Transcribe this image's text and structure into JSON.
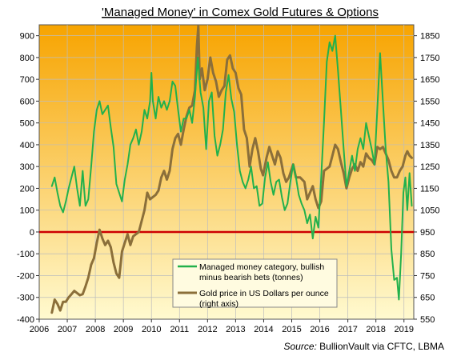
{
  "chart_data": {
    "type": "line",
    "title": "'Managed Money' in Comex Gold Futures & Options",
    "source_prefix": "Source:",
    "source_text": " BullionVault via CFTC, LBMA",
    "x_ticks": [
      "2006",
      "2007",
      "2008",
      "2009",
      "2010",
      "2011",
      "2012",
      "2013",
      "2014",
      "2015",
      "2016",
      "2017",
      "2018",
      "2019"
    ],
    "xlim": [
      2006,
      2019.35
    ],
    "left_axis": {
      "ylim": [
        -400,
        950
      ],
      "ticks": [
        -400,
        -300,
        -200,
        -100,
        0,
        100,
        200,
        300,
        400,
        500,
        600,
        700,
        800,
        900
      ]
    },
    "right_axis": {
      "ylim": [
        550,
        1900
      ],
      "ticks": [
        550,
        650,
        750,
        850,
        950,
        1050,
        1150,
        1250,
        1350,
        1450,
        1550,
        1650,
        1750,
        1850
      ]
    },
    "zero_line": {
      "value": 0,
      "color": "#cc0000"
    },
    "background_gradient": {
      "top": "#f7a400",
      "bottom": "#fffad0"
    },
    "grid": true,
    "legend_placement": "lower-center",
    "series": [
      {
        "name": "Managed money category, bullish minus bearish bets (tonnes)",
        "legend_lines": [
          "Managed money category, bullish",
          "minus bearish bets (tonnes)"
        ],
        "axis": "left",
        "color": "#22b14c",
        "points": [
          [
            2006.45,
            210
          ],
          [
            2006.55,
            250
          ],
          [
            2006.65,
            180
          ],
          [
            2006.75,
            120
          ],
          [
            2006.85,
            90
          ],
          [
            2006.95,
            140
          ],
          [
            2007.05,
            200
          ],
          [
            2007.15,
            250
          ],
          [
            2007.25,
            300
          ],
          [
            2007.35,
            200
          ],
          [
            2007.45,
            120
          ],
          [
            2007.55,
            280
          ],
          [
            2007.65,
            120
          ],
          [
            2007.75,
            150
          ],
          [
            2007.85,
            300
          ],
          [
            2007.95,
            460
          ],
          [
            2008.05,
            560
          ],
          [
            2008.15,
            600
          ],
          [
            2008.25,
            540
          ],
          [
            2008.35,
            560
          ],
          [
            2008.45,
            580
          ],
          [
            2008.55,
            480
          ],
          [
            2008.65,
            390
          ],
          [
            2008.75,
            220
          ],
          [
            2008.85,
            180
          ],
          [
            2008.95,
            140
          ],
          [
            2009.05,
            240
          ],
          [
            2009.15,
            310
          ],
          [
            2009.25,
            400
          ],
          [
            2009.35,
            430
          ],
          [
            2009.45,
            470
          ],
          [
            2009.55,
            400
          ],
          [
            2009.65,
            460
          ],
          [
            2009.75,
            560
          ],
          [
            2009.85,
            520
          ],
          [
            2009.95,
            600
          ],
          [
            2010.0,
            730
          ],
          [
            2010.05,
            600
          ],
          [
            2010.15,
            520
          ],
          [
            2010.25,
            620
          ],
          [
            2010.35,
            570
          ],
          [
            2010.45,
            600
          ],
          [
            2010.55,
            560
          ],
          [
            2010.65,
            600
          ],
          [
            2010.75,
            690
          ],
          [
            2010.85,
            670
          ],
          [
            2010.95,
            560
          ],
          [
            2011.05,
            460
          ],
          [
            2011.15,
            520
          ],
          [
            2011.25,
            520
          ],
          [
            2011.35,
            560
          ],
          [
            2011.45,
            500
          ],
          [
            2011.55,
            620
          ],
          [
            2011.65,
            800
          ],
          [
            2011.75,
            640
          ],
          [
            2011.85,
            570
          ],
          [
            2011.95,
            380
          ],
          [
            2012.05,
            600
          ],
          [
            2012.15,
            640
          ],
          [
            2012.25,
            440
          ],
          [
            2012.35,
            350
          ],
          [
            2012.45,
            400
          ],
          [
            2012.55,
            470
          ],
          [
            2012.65,
            640
          ],
          [
            2012.75,
            720
          ],
          [
            2012.85,
            610
          ],
          [
            2012.95,
            550
          ],
          [
            2013.05,
            400
          ],
          [
            2013.15,
            280
          ],
          [
            2013.25,
            230
          ],
          [
            2013.35,
            200
          ],
          [
            2013.45,
            240
          ],
          [
            2013.55,
            300
          ],
          [
            2013.65,
            200
          ],
          [
            2013.75,
            210
          ],
          [
            2013.85,
            120
          ],
          [
            2013.95,
            130
          ],
          [
            2014.05,
            250
          ],
          [
            2014.15,
            320
          ],
          [
            2014.25,
            230
          ],
          [
            2014.35,
            170
          ],
          [
            2014.45,
            230
          ],
          [
            2014.55,
            240
          ],
          [
            2014.65,
            160
          ],
          [
            2014.75,
            100
          ],
          [
            2014.85,
            130
          ],
          [
            2014.95,
            230
          ],
          [
            2015.05,
            310
          ],
          [
            2015.15,
            250
          ],
          [
            2015.25,
            170
          ],
          [
            2015.35,
            130
          ],
          [
            2015.45,
            100
          ],
          [
            2015.55,
            40
          ],
          [
            2015.65,
            80
          ],
          [
            2015.75,
            -30
          ],
          [
            2015.85,
            70
          ],
          [
            2015.95,
            20
          ],
          [
            2016.05,
            250
          ],
          [
            2016.15,
            500
          ],
          [
            2016.25,
            780
          ],
          [
            2016.35,
            870
          ],
          [
            2016.45,
            830
          ],
          [
            2016.55,
            900
          ],
          [
            2016.65,
            740
          ],
          [
            2016.75,
            560
          ],
          [
            2016.85,
            380
          ],
          [
            2016.95,
            210
          ],
          [
            2017.05,
            280
          ],
          [
            2017.15,
            350
          ],
          [
            2017.25,
            280
          ],
          [
            2017.35,
            380
          ],
          [
            2017.45,
            430
          ],
          [
            2017.55,
            380
          ],
          [
            2017.65,
            500
          ],
          [
            2017.75,
            440
          ],
          [
            2017.85,
            380
          ],
          [
            2017.95,
            310
          ],
          [
            2018.05,
            560
          ],
          [
            2018.15,
            820
          ],
          [
            2018.25,
            600
          ],
          [
            2018.35,
            380
          ],
          [
            2018.45,
            230
          ],
          [
            2018.55,
            -80
          ],
          [
            2018.65,
            -220
          ],
          [
            2018.75,
            -210
          ],
          [
            2018.82,
            -310
          ],
          [
            2018.9,
            -100
          ],
          [
            2018.98,
            180
          ],
          [
            2019.05,
            250
          ],
          [
            2019.12,
            100
          ],
          [
            2019.2,
            270
          ],
          [
            2019.28,
            120
          ]
        ]
      },
      {
        "name": "Gold price in US Dollars per ounce (right axis)",
        "legend_lines": [
          "Gold price in US Dollars per ounce",
          "(right axis)"
        ],
        "axis": "right",
        "color": "#8b6f3a",
        "points": [
          [
            2006.45,
            580
          ],
          [
            2006.55,
            640
          ],
          [
            2006.65,
            620
          ],
          [
            2006.75,
            590
          ],
          [
            2006.85,
            630
          ],
          [
            2006.95,
            630
          ],
          [
            2007.05,
            650
          ],
          [
            2007.15,
            665
          ],
          [
            2007.25,
            680
          ],
          [
            2007.35,
            670
          ],
          [
            2007.45,
            660
          ],
          [
            2007.55,
            665
          ],
          [
            2007.65,
            700
          ],
          [
            2007.75,
            740
          ],
          [
            2007.85,
            800
          ],
          [
            2007.95,
            830
          ],
          [
            2008.05,
            900
          ],
          [
            2008.15,
            960
          ],
          [
            2008.25,
            920
          ],
          [
            2008.35,
            890
          ],
          [
            2008.45,
            910
          ],
          [
            2008.55,
            880
          ],
          [
            2008.65,
            810
          ],
          [
            2008.75,
            760
          ],
          [
            2008.85,
            740
          ],
          [
            2008.95,
            860
          ],
          [
            2009.05,
            900
          ],
          [
            2009.15,
            940
          ],
          [
            2009.25,
            890
          ],
          [
            2009.35,
            930
          ],
          [
            2009.45,
            940
          ],
          [
            2009.55,
            950
          ],
          [
            2009.65,
            1000
          ],
          [
            2009.75,
            1050
          ],
          [
            2009.85,
            1130
          ],
          [
            2009.95,
            1100
          ],
          [
            2010.05,
            1110
          ],
          [
            2010.15,
            1120
          ],
          [
            2010.25,
            1140
          ],
          [
            2010.35,
            1200
          ],
          [
            2010.45,
            1230
          ],
          [
            2010.55,
            1190
          ],
          [
            2010.65,
            1230
          ],
          [
            2010.75,
            1330
          ],
          [
            2010.85,
            1380
          ],
          [
            2010.95,
            1400
          ],
          [
            2011.05,
            1350
          ],
          [
            2011.15,
            1420
          ],
          [
            2011.25,
            1480
          ],
          [
            2011.35,
            1520
          ],
          [
            2011.45,
            1530
          ],
          [
            2011.55,
            1600
          ],
          [
            2011.62,
            1800
          ],
          [
            2011.67,
            1895
          ],
          [
            2011.72,
            1650
          ],
          [
            2011.8,
            1700
          ],
          [
            2011.9,
            1600
          ],
          [
            2012.0,
            1650
          ],
          [
            2012.1,
            1750
          ],
          [
            2012.2,
            1680
          ],
          [
            2012.3,
            1640
          ],
          [
            2012.4,
            1570
          ],
          [
            2012.5,
            1600
          ],
          [
            2012.6,
            1620
          ],
          [
            2012.7,
            1740
          ],
          [
            2012.8,
            1760
          ],
          [
            2012.9,
            1700
          ],
          [
            2013.0,
            1680
          ],
          [
            2013.1,
            1610
          ],
          [
            2013.2,
            1580
          ],
          [
            2013.3,
            1420
          ],
          [
            2013.4,
            1380
          ],
          [
            2013.5,
            1250
          ],
          [
            2013.6,
            1330
          ],
          [
            2013.7,
            1380
          ],
          [
            2013.8,
            1320
          ],
          [
            2013.9,
            1240
          ],
          [
            2013.98,
            1210
          ],
          [
            2014.1,
            1290
          ],
          [
            2014.2,
            1340
          ],
          [
            2014.3,
            1300
          ],
          [
            2014.4,
            1260
          ],
          [
            2014.5,
            1320
          ],
          [
            2014.6,
            1290
          ],
          [
            2014.7,
            1220
          ],
          [
            2014.8,
            1180
          ],
          [
            2014.9,
            1200
          ],
          [
            2015.05,
            1260
          ],
          [
            2015.15,
            1200
          ],
          [
            2015.3,
            1200
          ],
          [
            2015.45,
            1180
          ],
          [
            2015.55,
            1100
          ],
          [
            2015.65,
            1130
          ],
          [
            2015.75,
            1160
          ],
          [
            2015.85,
            1100
          ],
          [
            2015.95,
            1060
          ],
          [
            2016.05,
            1090
          ],
          [
            2016.15,
            1230
          ],
          [
            2016.25,
            1240
          ],
          [
            2016.35,
            1250
          ],
          [
            2016.45,
            1300
          ],
          [
            2016.55,
            1350
          ],
          [
            2016.65,
            1330
          ],
          [
            2016.75,
            1270
          ],
          [
            2016.85,
            1220
          ],
          [
            2016.95,
            1150
          ],
          [
            2017.05,
            1200
          ],
          [
            2017.15,
            1240
          ],
          [
            2017.25,
            1260
          ],
          [
            2017.35,
            1230
          ],
          [
            2017.45,
            1270
          ],
          [
            2017.55,
            1250
          ],
          [
            2017.65,
            1310
          ],
          [
            2017.75,
            1290
          ],
          [
            2017.85,
            1280
          ],
          [
            2017.95,
            1260
          ],
          [
            2018.05,
            1340
          ],
          [
            2018.15,
            1330
          ],
          [
            2018.25,
            1340
          ],
          [
            2018.35,
            1310
          ],
          [
            2018.45,
            1280
          ],
          [
            2018.55,
            1230
          ],
          [
            2018.65,
            1200
          ],
          [
            2018.75,
            1200
          ],
          [
            2018.85,
            1230
          ],
          [
            2018.95,
            1250
          ],
          [
            2019.05,
            1300
          ],
          [
            2019.12,
            1320
          ],
          [
            2019.2,
            1300
          ],
          [
            2019.28,
            1290
          ]
        ]
      }
    ]
  }
}
